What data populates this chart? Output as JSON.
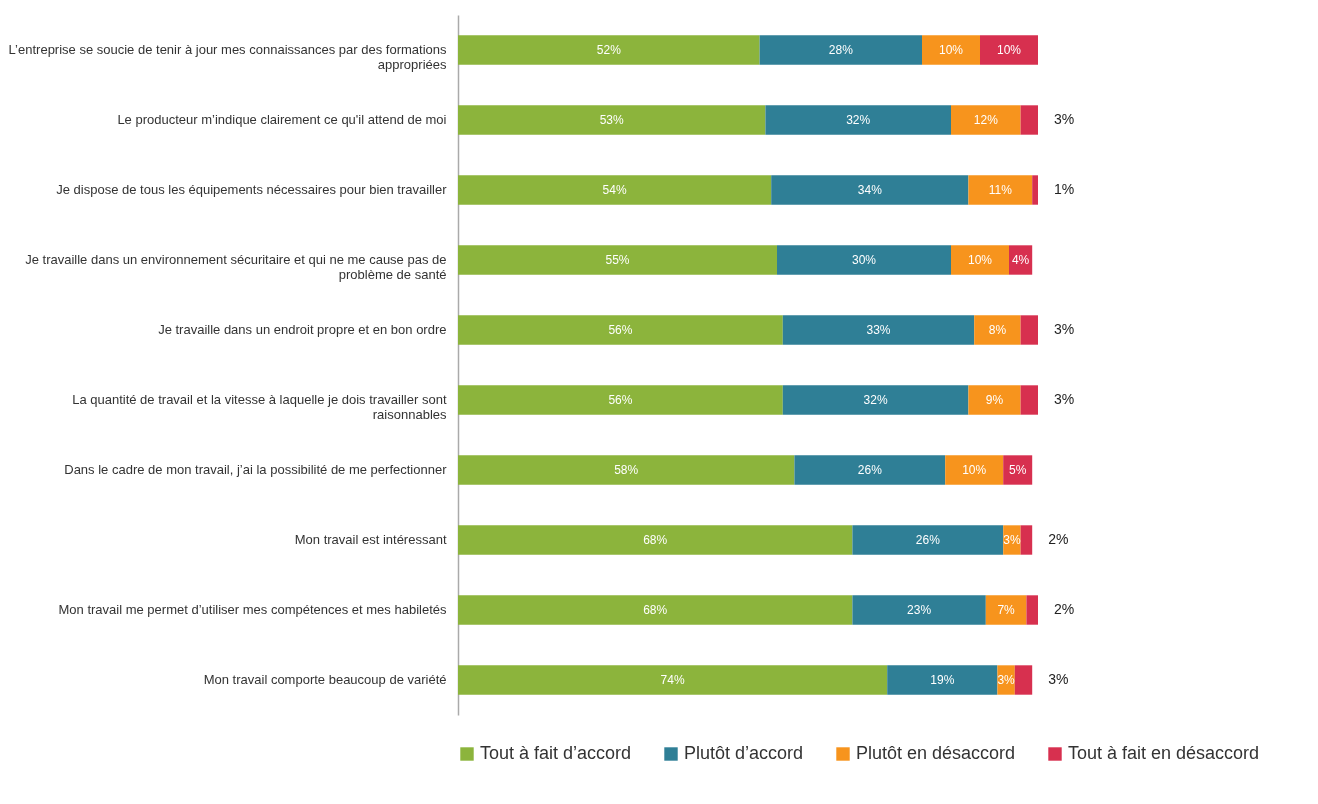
{
  "chart_data": {
    "type": "bar",
    "orientation": "horizontal",
    "stacked": true,
    "legend": "bottom",
    "categories": [
      "L’entreprise se soucie de tenir à jour mes connaissances par des formations appropriées",
      "Le producteur m’indique clairement ce qu'il attend de moi",
      "Je dispose de tous les équipements nécessaires pour bien travailler",
      "Je travaille dans un environnement sécuritaire et qui ne me cause pas de problème de santé",
      "Je travaille dans un endroit propre et en bon ordre",
      "La quantité de travail et la vitesse à laquelle je dois travailler sont raisonnables",
      "Dans le cadre de mon travail, j’ai la possibilité de me perfectionner",
      "Mon travail est intéressant",
      "Mon travail me permet d’utiliser mes compétences et mes habiletés",
      "Mon travail comporte beaucoup de variété"
    ],
    "series": [
      {
        "name": "Tout à fait d’accord",
        "color": "#8cb43c",
        "values": [
          52,
          53,
          54,
          55,
          56,
          56,
          58,
          68,
          68,
          74
        ],
        "value_labels": [
          "52%",
          "53%",
          "54%",
          "55%",
          "56%",
          "56%",
          "58%",
          "68%",
          "68%",
          "74%"
        ]
      },
      {
        "name": "Plutôt d’accord",
        "color": "#2f7f96",
        "values": [
          28,
          32,
          34,
          30,
          33,
          32,
          26,
          26,
          23,
          19
        ],
        "value_labels": [
          "28%",
          "32%",
          "34%",
          "30%",
          "33%",
          "32%",
          "26%",
          "26%",
          "23%",
          "19%"
        ]
      },
      {
        "name": "Plutôt en désaccord",
        "color": "#f7941d",
        "values": [
          10,
          12,
          11,
          10,
          8,
          9,
          10,
          3,
          7,
          3
        ],
        "value_labels": [
          "10%",
          "12%",
          "11%",
          "10%",
          "8%",
          "9%",
          "10%",
          "3%",
          "7%",
          "3%"
        ]
      },
      {
        "name": "Tout à fait en désaccord",
        "color": "#d7304f",
        "values": [
          10,
          3,
          1,
          4,
          3,
          3,
          5,
          2,
          2,
          3
        ],
        "value_labels": [
          "10%",
          "3%",
          "1%",
          "4%",
          "3%",
          "3%",
          "5%",
          "2%",
          "2%",
          "3%"
        ]
      }
    ]
  }
}
